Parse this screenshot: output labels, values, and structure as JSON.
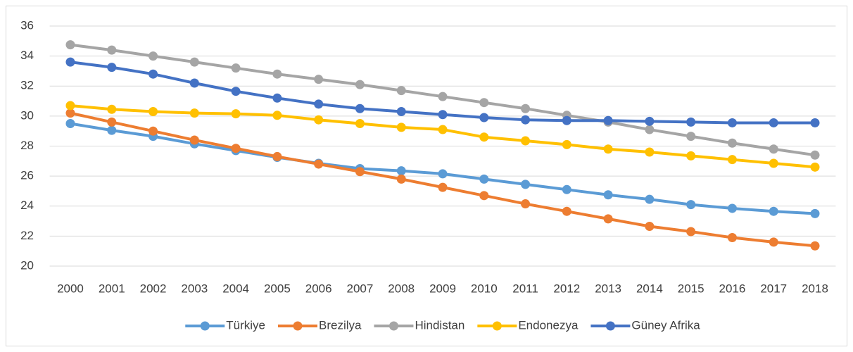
{
  "chart_data": {
    "type": "line",
    "categories": [
      "2000",
      "2001",
      "2002",
      "2003",
      "2004",
      "2005",
      "2006",
      "2007",
      "2008",
      "2009",
      "2010",
      "2011",
      "2012",
      "2013",
      "2014",
      "2015",
      "2016",
      "2017",
      "2018"
    ],
    "series": [
      {
        "name": "Türkiye",
        "color": "#5b9bd5",
        "values": [
          29.5,
          29.05,
          28.65,
          28.15,
          27.7,
          27.25,
          26.85,
          26.5,
          26.35,
          26.15,
          25.8,
          25.45,
          25.1,
          24.75,
          24.45,
          24.1,
          23.85,
          23.65,
          23.5
        ]
      },
      {
        "name": "Brezilya",
        "color": "#ed7d31",
        "values": [
          30.2,
          29.6,
          29.0,
          28.4,
          27.85,
          27.3,
          26.8,
          26.3,
          25.8,
          25.25,
          24.7,
          24.15,
          23.65,
          23.15,
          22.65,
          22.3,
          21.9,
          21.6,
          21.35
        ]
      },
      {
        "name": "Hindistan",
        "color": "#a5a5a5",
        "values": [
          34.75,
          34.4,
          34.0,
          33.6,
          33.2,
          32.8,
          32.45,
          32.1,
          31.7,
          31.3,
          30.9,
          30.5,
          30.05,
          29.6,
          29.1,
          28.65,
          28.2,
          27.8,
          27.4
        ]
      },
      {
        "name": "Endonezya",
        "color": "#ffc000",
        "values": [
          30.7,
          30.45,
          30.3,
          30.2,
          30.15,
          30.05,
          29.75,
          29.5,
          29.25,
          29.1,
          28.6,
          28.35,
          28.1,
          27.8,
          27.6,
          27.35,
          27.1,
          26.85,
          26.6
        ]
      },
      {
        "name": "Güney Afrika",
        "color": "#4472c4",
        "values": [
          33.6,
          33.25,
          32.8,
          32.2,
          31.65,
          31.2,
          30.8,
          30.5,
          30.3,
          30.1,
          29.9,
          29.75,
          29.7,
          29.7,
          29.65,
          29.6,
          29.55,
          29.55,
          29.55
        ]
      }
    ],
    "ylim": [
      20,
      36
    ],
    "yticks": [
      20,
      22,
      24,
      26,
      28,
      30,
      32,
      34,
      36
    ],
    "grid": true,
    "legend": "bottom"
  }
}
